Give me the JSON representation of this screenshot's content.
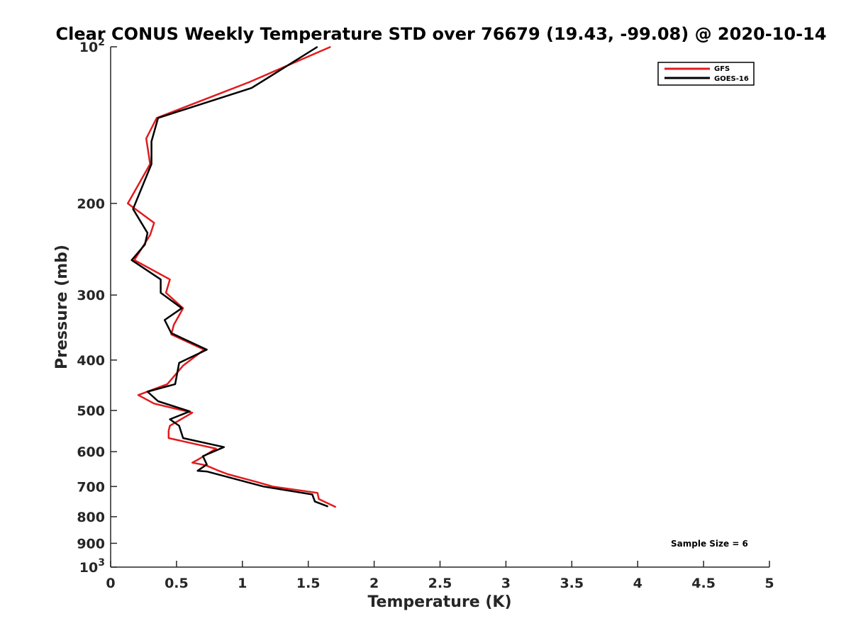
{
  "chart_data": {
    "type": "line",
    "title": "Clear CONUS Weekly Temperature STD over 76679 (19.43, -99.08) @ 2020-10-14",
    "xlabel": "Temperature (K)",
    "ylabel": "Pressure (mb)",
    "xlim": [
      0,
      5
    ],
    "ylim": [
      100,
      1000
    ],
    "y_scale": "log",
    "y_reversed": true,
    "x_ticks": [
      "0",
      "0.5",
      "1",
      "1.5",
      "2",
      "2.5",
      "3",
      "3.5",
      "4",
      "4.5",
      "5"
    ],
    "y_ticks": [
      {
        "value": 100,
        "label": "10",
        "sup": "2"
      },
      {
        "value": 200,
        "label": "200"
      },
      {
        "value": 300,
        "label": "300"
      },
      {
        "value": 400,
        "label": "400"
      },
      {
        "value": 500,
        "label": "500"
      },
      {
        "value": 600,
        "label": "600"
      },
      {
        "value": 700,
        "label": "700"
      },
      {
        "value": 800,
        "label": "800"
      },
      {
        "value": 900,
        "label": "900"
      },
      {
        "value": 1000,
        "label": "10",
        "sup": "3"
      }
    ],
    "grid": false,
    "legend_position": "top-right",
    "annotation": "Sample Size = 6",
    "series": [
      {
        "name": "GFS",
        "color": "#e31a1c",
        "points": [
          [
            1.67,
            100
          ],
          [
            1.05,
            117
          ],
          [
            0.35,
            137
          ],
          [
            0.27,
            150
          ],
          [
            0.3,
            168
          ],
          [
            0.13,
            200
          ],
          [
            0.33,
            218
          ],
          [
            0.3,
            230
          ],
          [
            0.18,
            257
          ],
          [
            0.45,
            280
          ],
          [
            0.42,
            297
          ],
          [
            0.55,
            318
          ],
          [
            0.48,
            342
          ],
          [
            0.46,
            357
          ],
          [
            0.71,
            382
          ],
          [
            0.55,
            410
          ],
          [
            0.43,
            445
          ],
          [
            0.21,
            467
          ],
          [
            0.33,
            485
          ],
          [
            0.62,
            505
          ],
          [
            0.45,
            535
          ],
          [
            0.44,
            547
          ],
          [
            0.44,
            565
          ],
          [
            0.8,
            592
          ],
          [
            0.67,
            620
          ],
          [
            0.62,
            630
          ],
          [
            0.72,
            637
          ],
          [
            0.82,
            653
          ],
          [
            0.89,
            663
          ],
          [
            1.1,
            685
          ],
          [
            1.23,
            700
          ],
          [
            1.57,
            720
          ],
          [
            1.58,
            740
          ],
          [
            1.71,
            767
          ]
        ]
      },
      {
        "name": "GOES-16",
        "color": "#000000",
        "points": [
          [
            1.57,
            100
          ],
          [
            1.07,
            120
          ],
          [
            0.36,
            137
          ],
          [
            0.31,
            152
          ],
          [
            0.31,
            168
          ],
          [
            0.17,
            205
          ],
          [
            0.28,
            228
          ],
          [
            0.26,
            240
          ],
          [
            0.16,
            257
          ],
          [
            0.38,
            280
          ],
          [
            0.38,
            297
          ],
          [
            0.54,
            318
          ],
          [
            0.41,
            335
          ],
          [
            0.46,
            355
          ],
          [
            0.73,
            382
          ],
          [
            0.52,
            405
          ],
          [
            0.49,
            445
          ],
          [
            0.28,
            460
          ],
          [
            0.36,
            480
          ],
          [
            0.6,
            502
          ],
          [
            0.45,
            520
          ],
          [
            0.52,
            535
          ],
          [
            0.55,
            565
          ],
          [
            0.86,
            588
          ],
          [
            0.7,
            612
          ],
          [
            0.73,
            635
          ],
          [
            0.66,
            653
          ],
          [
            0.73,
            655
          ],
          [
            1.16,
            700
          ],
          [
            1.53,
            725
          ],
          [
            1.55,
            748
          ],
          [
            1.65,
            765
          ]
        ]
      }
    ]
  }
}
